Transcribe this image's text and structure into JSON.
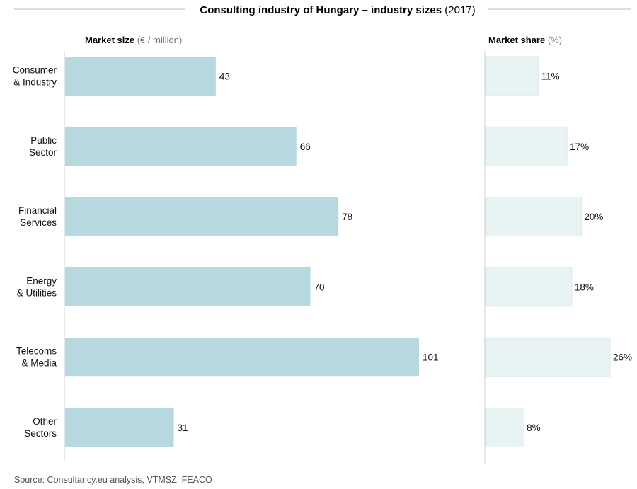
{
  "chart_data": [
    {
      "type": "bar",
      "orientation": "horizontal",
      "title_main": "Consulting industry of Hungary – industry sizes",
      "title_year": "(2017)",
      "label_main": "Market size",
      "label_unit": "(€ / million)",
      "categories": [
        [
          "Consumer",
          "& Industry"
        ],
        [
          "Public",
          "Sector"
        ],
        [
          "Financial",
          "Services"
        ],
        [
          "Energy",
          "& Utilities"
        ],
        [
          "Telecoms",
          "& Media"
        ],
        [
          "Other",
          "Sectors"
        ]
      ],
      "values": [
        43,
        66,
        78,
        70,
        101,
        31
      ],
      "value_labels": [
        "43",
        "66",
        "78",
        "70",
        "101",
        "31"
      ],
      "xlim": [
        0,
        105
      ],
      "bar_color": "#b6d9e0",
      "grid": false
    },
    {
      "type": "bar",
      "orientation": "horizontal",
      "label_main": "Market share",
      "label_unit": "(%)",
      "values": [
        11,
        17,
        20,
        18,
        26,
        8
      ],
      "value_labels": [
        "11%",
        "17%",
        "20%",
        "18%",
        "26%",
        "8%"
      ],
      "xlim": [
        0,
        27
      ],
      "bar_color": "#e8f3f4",
      "grid": false
    }
  ],
  "source": "Source: Consultancy.eu analysis, VTMSZ, FEACO",
  "colors": {
    "axis": "#d0d0d0",
    "rule": "#bbbbbb",
    "text": "#111111",
    "muted": "#777777"
  }
}
